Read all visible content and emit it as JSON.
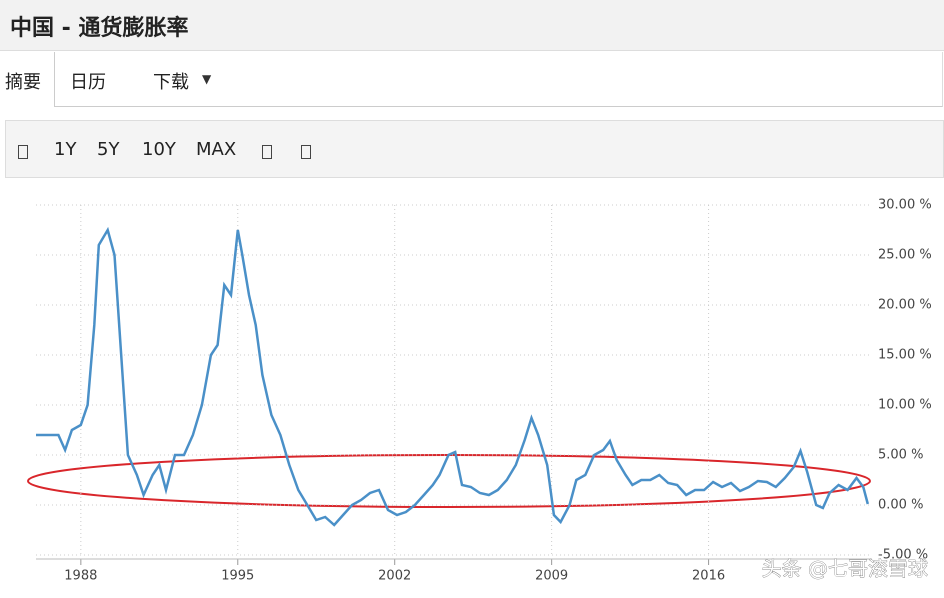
{
  "header": {
    "title": "中国 - 通货膨胀率"
  },
  "tabs": [
    "摘要",
    "日历",
    "下载"
  ],
  "toolbar": {
    "buttons": [
      "1Y",
      "5Y",
      "10Y",
      "MAX"
    ]
  },
  "watermark": "头条 @七哥滚雪球",
  "chart_data": {
    "type": "line",
    "color": "#4a90c8",
    "grid": true,
    "x": [
      1986.0,
      1987.0,
      1987.3,
      1987.6,
      1988.0,
      1988.3,
      1988.6,
      1988.8,
      1989.2,
      1989.5,
      1989.8,
      1990.1,
      1990.5,
      1990.8,
      1991.2,
      1991.5,
      1991.8,
      1992.2,
      1992.6,
      1993.0,
      1993.4,
      1993.8,
      1994.1,
      1994.4,
      1994.7,
      1995.0,
      1995.2,
      1995.5,
      1995.8,
      1996.1,
      1996.5,
      1996.9,
      1997.3,
      1997.7,
      1998.1,
      1998.5,
      1998.9,
      1999.3,
      1999.7,
      2000.1,
      2000.5,
      2000.9,
      2001.3,
      2001.7,
      2002.1,
      2002.5,
      2002.9,
      2003.3,
      2003.7,
      2004.0,
      2004.4,
      2004.7,
      2005.0,
      2005.4,
      2005.8,
      2006.2,
      2006.6,
      2007.0,
      2007.4,
      2007.8,
      2008.1,
      2008.4,
      2008.8,
      2009.1,
      2009.4,
      2009.8,
      2010.1,
      2010.5,
      2010.9,
      2011.3,
      2011.6,
      2011.9,
      2012.3,
      2012.6,
      2013.0,
      2013.4,
      2013.8,
      2014.2,
      2014.6,
      2015.0,
      2015.4,
      2015.8,
      2016.2,
      2016.6,
      2017.0,
      2017.4,
      2017.8,
      2018.2,
      2018.6,
      2019.0,
      2019.4,
      2019.8,
      2020.1,
      2020.4,
      2020.8,
      2021.1,
      2021.4,
      2021.8,
      2022.2,
      2022.6,
      2022.9,
      2023.1
    ],
    "values": [
      7.0,
      7.0,
      5.5,
      7.5,
      8.0,
      10,
      18,
      26,
      27.5,
      25,
      15,
      5,
      3,
      1,
      3,
      4,
      1.5,
      5,
      5,
      7,
      10,
      15,
      16,
      22,
      21,
      27.5,
      25,
      21,
      18,
      13,
      9,
      7,
      4,
      1.5,
      0,
      -1.5,
      -1.2,
      -2,
      -1,
      0,
      0.5,
      1.2,
      1.5,
      -0.5,
      -1,
      -0.7,
      0,
      1,
      2,
      3,
      5,
      5.3,
      2,
      1.8,
      1.2,
      1,
      1.5,
      2.5,
      4,
      6.5,
      8.7,
      7,
      4,
      -1,
      -1.7,
      0,
      2.5,
      3,
      5,
      5.5,
      6.4,
      4.5,
      3,
      2,
      2.5,
      2.5,
      3,
      2.2,
      2,
      1,
      1.5,
      1.5,
      2.3,
      1.8,
      2.2,
      1.4,
      1.8,
      2.4,
      2.3,
      1.8,
      2.7,
      3.8,
      5.4,
      3.3,
      0,
      -0.3,
      1.2,
      2,
      1.5,
      2.7,
      1.8,
      0.1
    ],
    "xlim": [
      1986,
      2023.2
    ],
    "xticks": [
      1988,
      1995,
      2002,
      2009,
      2016
    ],
    "ylim": [
      -5,
      30
    ],
    "yticks": [
      {
        "value": 30,
        "label": "30.00 %"
      },
      {
        "value": 25,
        "label": "25.00 %"
      },
      {
        "value": 20,
        "label": "20.00 %"
      },
      {
        "value": 15,
        "label": "15.00 %"
      },
      {
        "value": 10,
        "label": "10.00 %"
      },
      {
        "value": 5,
        "label": "5.00 %"
      },
      {
        "value": 0,
        "label": "0.00 %"
      },
      {
        "value": -5,
        "label": "-5.00 %"
      }
    ]
  }
}
